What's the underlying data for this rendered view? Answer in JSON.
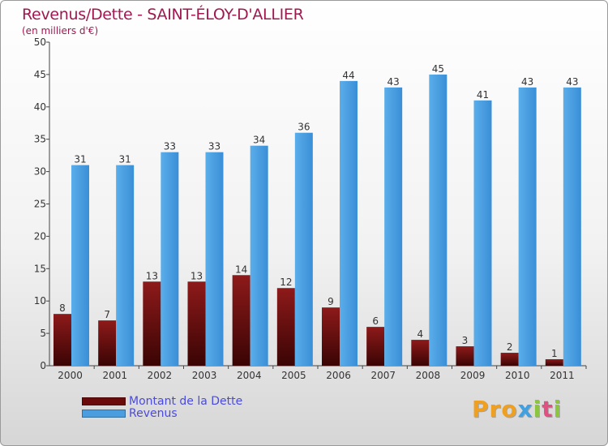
{
  "title": "Revenus/Dette - SAINT-ÉLOY-D'ALLIER",
  "subtitle": "(en milliers d'€)",
  "logo": "Proxiti",
  "chart_data": {
    "type": "bar",
    "categories": [
      "2000",
      "2001",
      "2002",
      "2003",
      "2004",
      "2005",
      "2006",
      "2007",
      "2008",
      "2009",
      "2010",
      "2011"
    ],
    "series": [
      {
        "name": "Montant de la Dette",
        "color": "#7a1010",
        "values": [
          8,
          7,
          13,
          13,
          14,
          12,
          9,
          6,
          4,
          3,
          2,
          1
        ]
      },
      {
        "name": "Revenus",
        "color": "#4a9ee0",
        "values": [
          31,
          31,
          33,
          33,
          34,
          36,
          44,
          43,
          45,
          41,
          43,
          43
        ]
      }
    ],
    "ylim": [
      0,
      50
    ],
    "yticks": [
      0,
      5,
      10,
      15,
      20,
      25,
      30,
      35,
      40,
      45,
      50
    ],
    "grid": false,
    "legend": "bottom-left"
  }
}
